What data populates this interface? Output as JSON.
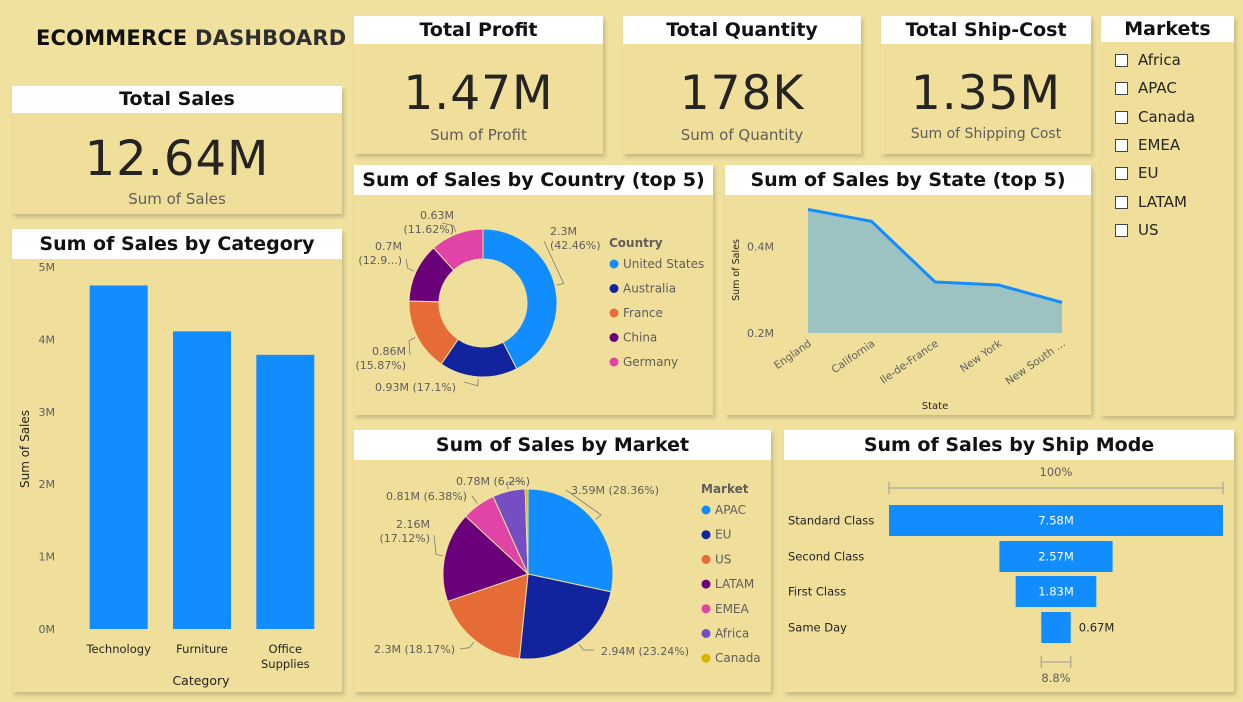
{
  "dashboard": {
    "title_part1": "ECOMMERCE",
    "title_part2": "DASHBOARD"
  },
  "kpis": {
    "sales": {
      "title": "Total Sales",
      "value": "12.64M",
      "label": "Sum of Sales"
    },
    "profit": {
      "title": "Total Profit",
      "value": "1.47M",
      "label": "Sum of Profit"
    },
    "quantity": {
      "title": "Total Quantity",
      "value": "178K",
      "label": "Sum of Quantity"
    },
    "shipcost": {
      "title": "Total Ship-Cost",
      "value": "1.35M",
      "label": "Sum of Shipping Cost"
    }
  },
  "markets_slicer": {
    "title": "Markets",
    "items": [
      "Africa",
      "APAC",
      "Canada",
      "EMEA",
      "EU",
      "LATAM",
      "US"
    ]
  },
  "colors": {
    "blue": "#118dff",
    "navy": "#12239e",
    "orange": "#e66c37",
    "purple": "#6b007b",
    "pink": "#e044a7",
    "violet": "#744ec2",
    "gold": "#d9b300",
    "area_fill": "#9cc3c2"
  },
  "chart_data": [
    {
      "id": "category",
      "type": "bar",
      "title": "Sum of Sales by Category",
      "xlabel": "Category",
      "ylabel": "Sum of Sales",
      "categories": [
        "Technology",
        "Furniture",
        "Office Supplies"
      ],
      "category_lines": [
        [
          "Technology"
        ],
        [
          "Furniture"
        ],
        [
          "Office",
          "Supplies"
        ]
      ],
      "values": [
        4744691,
        4110874,
        3787070
      ],
      "ylim": [
        0,
        5000000
      ],
      "yticks": [
        0,
        1000000,
        2000000,
        3000000,
        4000000,
        5000000
      ],
      "ytick_labels": [
        "0M",
        "1M",
        "2M",
        "3M",
        "4M",
        "5M"
      ],
      "color": "#118dff"
    },
    {
      "id": "country",
      "type": "pie",
      "donut": true,
      "title": "Sum of Sales by Country (top 5)",
      "legend_title": "Country",
      "legend": "right",
      "categories": [
        "United States",
        "Australia",
        "France",
        "China",
        "Germany"
      ],
      "values": [
        2297201,
        925236,
        858931,
        700562,
        628840
      ],
      "labels": [
        [
          "2.3M",
          "(42.46%)"
        ],
        [
          "0.93M (17.1%)"
        ],
        [
          "0.86M",
          "(15.87%)"
        ],
        [
          "0.7M",
          "(12.9...)"
        ],
        [
          "0.63M",
          "(11.62%)"
        ]
      ],
      "colors": [
        "#118dff",
        "#12239e",
        "#e66c37",
        "#6b007b",
        "#e044a7"
      ]
    },
    {
      "id": "state",
      "type": "area",
      "title": "Sum of Sales by State (top 5)",
      "xlabel": "State",
      "ylabel": "Sum of Sales",
      "categories": [
        "England",
        "California",
        "Ile-de-France",
        "New York",
        "New South ..."
      ],
      "values": [
        485170,
        457688,
        317822,
        310876,
        270487
      ],
      "ylim": [
        0.2,
        0.5
      ],
      "yticks": [
        0.2,
        0.4
      ],
      "ytick_labels": [
        "0.2M",
        "0.4M"
      ],
      "color": "#118dff"
    },
    {
      "id": "market",
      "type": "pie",
      "title": "Sum of Sales by Market",
      "legend_title": "Market",
      "legend": "right",
      "categories": [
        "APAC",
        "EU",
        "US",
        "LATAM",
        "EMEA",
        "Africa",
        "Canada"
      ],
      "values": [
        3585744,
        2938089,
        2297201,
        2164605,
        806161,
        783773,
        66929
      ],
      "labels": [
        [
          "3.59M (28.36%)"
        ],
        [
          "2.94M (23.24%)"
        ],
        [
          "2.3M (18.17%)"
        ],
        [
          "2.16M",
          "(17.12%)"
        ],
        [
          "0.81M (6.38%)"
        ],
        [
          "0.78M (6.2%)"
        ],
        []
      ],
      "colors": [
        "#118dff",
        "#12239e",
        "#e66c37",
        "#6b007b",
        "#e044a7",
        "#744ec2",
        "#d9b300"
      ]
    },
    {
      "id": "shipmode",
      "type": "funnel",
      "title": "Sum of Sales by Ship Mode",
      "categories": [
        "Standard Class",
        "Second Class",
        "First Class",
        "Same Day"
      ],
      "values": [
        7.58,
        2.57,
        1.83,
        0.67
      ],
      "value_labels": [
        "7.58M",
        "2.57M",
        "1.83M",
        "0.67M"
      ],
      "top_label": "100%",
      "bottom_label": "8.8%",
      "color": "#118dff"
    }
  ]
}
